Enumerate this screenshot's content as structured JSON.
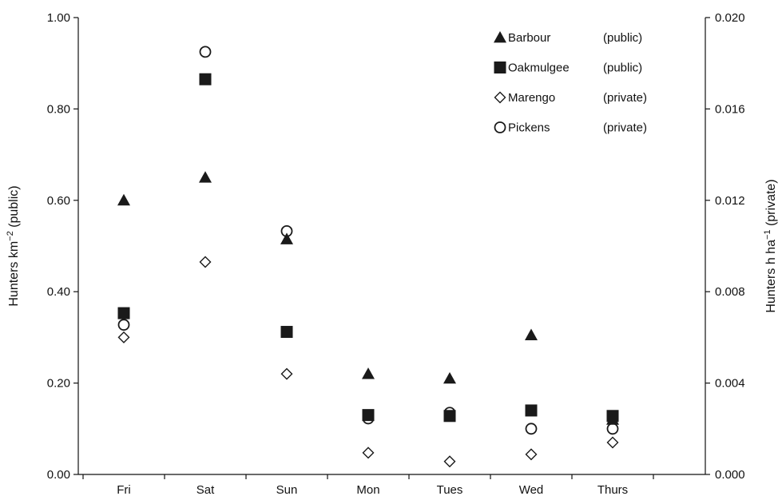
{
  "chart_data": {
    "type": "scatter",
    "categories": [
      "Fri",
      "Sat",
      "Sun",
      "Mon",
      "Tues",
      "Wed",
      "Thurs"
    ],
    "y_left": {
      "label": "Hunters km",
      "label_sup": "−2",
      "label_suffix": " (public)",
      "lim": [
        0,
        1.0
      ],
      "ticks": [
        "0.00",
        "0.20",
        "0.40",
        "0.60",
        "0.80",
        "1.00"
      ]
    },
    "y_right": {
      "label": "Hunters h ha",
      "label_sup": "−1",
      "label_suffix": " (private)",
      "lim": [
        0,
        0.02
      ],
      "ticks": [
        "0.000",
        "0.004",
        "0.008",
        "0.012",
        "0.016",
        "0.020"
      ]
    },
    "series": [
      {
        "name": "Barbour",
        "ownership": "(public)",
        "axis": "left",
        "marker": "triangle-filled",
        "values": [
          0.6,
          0.65,
          0.515,
          0.22,
          0.21,
          0.305,
          0.12
        ]
      },
      {
        "name": "Oakmulgee",
        "ownership": "(public)",
        "axis": "left",
        "marker": "square-filled",
        "values": [
          0.353,
          0.865,
          0.312,
          0.13,
          0.128,
          0.14,
          0.128
        ]
      },
      {
        "name": "Marengo",
        "ownership": "(private)",
        "axis": "right",
        "marker": "diamond-open",
        "values": [
          0.006,
          0.0093,
          0.0044,
          0.00095,
          0.00057,
          0.00088,
          0.0014
        ]
      },
      {
        "name": "Pickens",
        "ownership": "(private)",
        "axis": "right",
        "marker": "circle-open",
        "values": [
          0.00655,
          0.0185,
          0.01065,
          0.00245,
          0.0027,
          0.002,
          0.002
        ]
      }
    ],
    "legend_position": "top-right",
    "grid": false
  }
}
